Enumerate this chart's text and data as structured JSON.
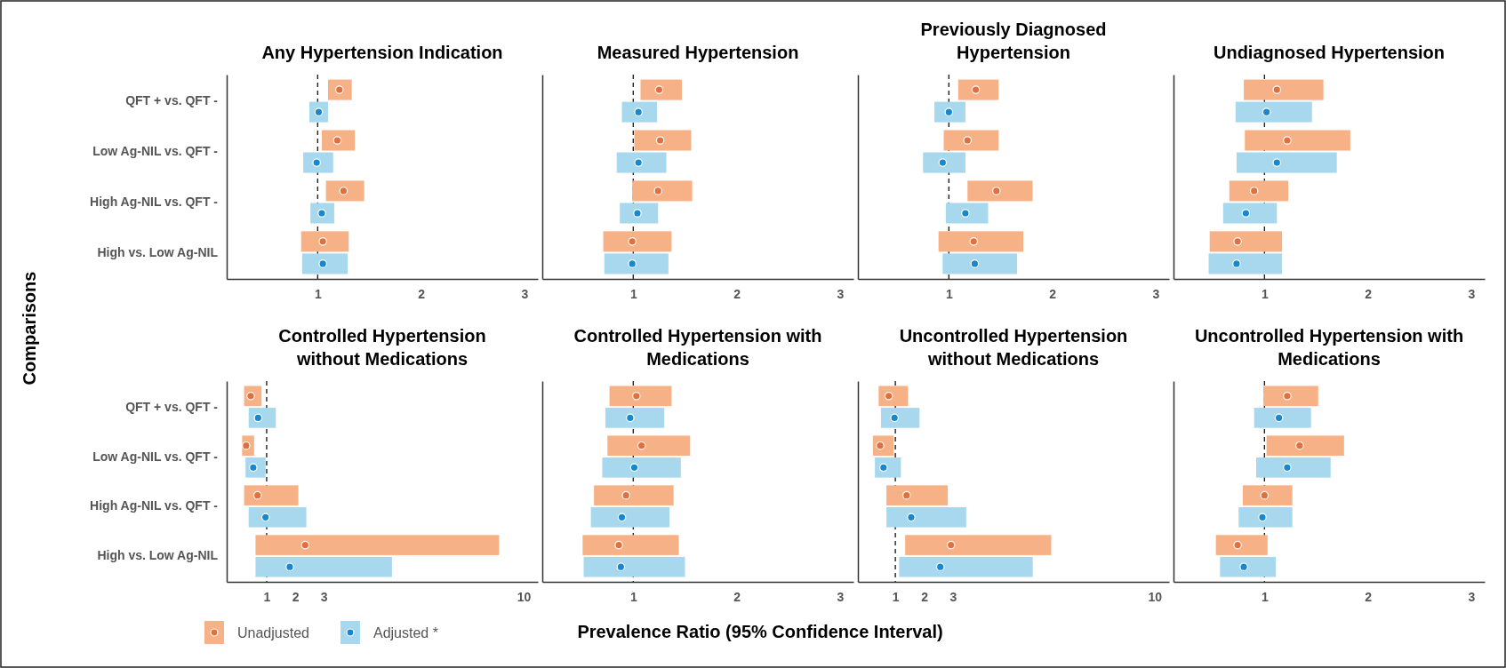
{
  "chart_data": [
    {
      "type": "bar",
      "title": "Any Hypertension Indication",
      "ylabel": "Comparisons",
      "orientation": "horizontal",
      "categories": [
        "QFT + vs. QFT -",
        "Low Ag-NIL vs. QFT -",
        "High Ag-NIL vs. QFT -",
        "High vs. Low Ag-NIL"
      ],
      "xlim": [
        0.12,
        3.13
      ],
      "xticks": [
        1,
        2,
        3
      ],
      "ref_lines": [
        {
          "axis": "x",
          "value": 1,
          "line_style": "dashed"
        }
      ],
      "marker": "circle",
      "series": [
        {
          "type": "bar",
          "color": "#f7b186",
          "base": [
            1.1,
            1.04,
            1.08,
            0.84
          ],
          "values": [
            0.23,
            0.32,
            0.37,
            0.46
          ]
        },
        {
          "type": "bar",
          "color": "#a8d8ee",
          "base": [
            0.92,
            0.86,
            0.93,
            0.85
          ],
          "values": [
            0.18,
            0.29,
            0.23,
            0.44
          ]
        },
        {
          "type": "scatter",
          "color": "#e2703f",
          "values": [
            1.21,
            1.19,
            1.25,
            1.05
          ]
        },
        {
          "type": "scatter",
          "color": "#1788cf",
          "values": [
            1.01,
            0.99,
            1.04,
            1.05
          ]
        }
      ]
    },
    {
      "type": "bar",
      "title": "Measured Hypertension",
      "orientation": "horizontal",
      "tick_labels": "x",
      "categories": [
        null,
        null,
        null,
        null
      ],
      "xlim": [
        0.12,
        3.13
      ],
      "xticks": [
        1,
        2,
        3
      ],
      "ref_lines": [
        {
          "axis": "x",
          "value": 1,
          "line_style": "dashed"
        }
      ],
      "marker": "circle",
      "series": [
        {
          "type": "bar",
          "color": "#f7b186",
          "base": [
            1.07,
            1.01,
            0.99,
            0.71
          ],
          "values": [
            0.4,
            0.55,
            0.58,
            0.66
          ]
        },
        {
          "type": "bar",
          "color": "#a8d8ee",
          "base": [
            0.89,
            0.84,
            0.87,
            0.72
          ],
          "values": [
            0.34,
            0.48,
            0.37,
            0.62
          ]
        },
        {
          "type": "scatter",
          "color": "#e2703f",
          "values": [
            1.25,
            1.26,
            1.24,
            0.99
          ]
        },
        {
          "type": "scatter",
          "color": "#1788cf",
          "values": [
            1.05,
            1.05,
            1.04,
            0.99
          ]
        }
      ]
    },
    {
      "type": "bar",
      "title": "Previously Diagnosed Hypertension",
      "orientation": "horizontal",
      "tick_labels": "x",
      "categories": [
        null,
        null,
        null,
        null
      ],
      "xlim": [
        0.12,
        3.13
      ],
      "xticks": [
        1,
        2,
        3
      ],
      "ref_lines": [
        {
          "axis": "x",
          "value": 1,
          "line_style": "dashed"
        }
      ],
      "marker": "circle",
      "series": [
        {
          "type": "bar",
          "color": "#f7b186",
          "base": [
            1.09,
            0.95,
            1.18,
            0.9
          ],
          "values": [
            0.39,
            0.53,
            0.63,
            0.82
          ]
        },
        {
          "type": "bar",
          "color": "#a8d8ee",
          "base": [
            0.86,
            0.75,
            0.97,
            0.94
          ],
          "values": [
            0.3,
            0.41,
            0.41,
            0.72
          ]
        },
        {
          "type": "scatter",
          "color": "#e2703f",
          "values": [
            1.26,
            1.18,
            1.46,
            1.24
          ]
        },
        {
          "type": "scatter",
          "color": "#1788cf",
          "values": [
            1.0,
            0.94,
            1.16,
            1.25
          ]
        }
      ]
    },
    {
      "type": "bar",
      "title": "Undiagnosed Hypertension",
      "orientation": "horizontal",
      "tick_labels": "x",
      "categories": [
        null,
        null,
        null,
        null
      ],
      "xlim": [
        0.12,
        3.13
      ],
      "xticks": [
        1,
        2,
        3
      ],
      "ref_lines": [
        {
          "axis": "x",
          "value": 1,
          "line_style": "dashed"
        }
      ],
      "marker": "circle",
      "series": [
        {
          "type": "bar",
          "color": "#f7b186",
          "base": [
            0.8,
            0.81,
            0.66,
            0.47
          ],
          "values": [
            0.77,
            1.02,
            0.57,
            0.7
          ]
        },
        {
          "type": "bar",
          "color": "#a8d8ee",
          "base": [
            0.72,
            0.73,
            0.6,
            0.46
          ],
          "values": [
            0.74,
            0.97,
            0.52,
            0.71
          ]
        },
        {
          "type": "scatter",
          "color": "#e2703f",
          "values": [
            1.12,
            1.22,
            0.9,
            0.74
          ]
        },
        {
          "type": "scatter",
          "color": "#1788cf",
          "values": [
            1.02,
            1.12,
            0.82,
            0.73
          ]
        }
      ]
    },
    {
      "type": "bar",
      "title": "Controlled Hypertension without Medications",
      "legend": "bottom",
      "orientation": "horizontal",
      "categories": [
        "QFT + vs. QFT -",
        "Low Ag-NIL vs. QFT -",
        "High Ag-NIL vs. QFT -",
        "High vs. Low Ag-NIL"
      ],
      "xlim": [
        -0.4,
        10.5
      ],
      "xticks": [
        1,
        2,
        3,
        10
      ],
      "ref_lines": [
        {
          "axis": "x",
          "value": 1,
          "line_style": "dashed"
        }
      ],
      "marker": "circle",
      "series": [
        {
          "type": "bar",
          "name": "Unadjusted",
          "color": "#f7b186",
          "base": [
            0.21,
            0.14,
            0.21,
            0.61
          ],
          "values": [
            0.61,
            0.42,
            1.9,
            8.53
          ]
        },
        {
          "type": "bar",
          "name": "Adjusted *",
          "color": "#a8d8ee",
          "base": [
            0.37,
            0.26,
            0.37,
            0.61
          ],
          "values": [
            0.95,
            0.7,
            2.02,
            4.78
          ]
        },
        {
          "type": "scatter",
          "color": "#e2703f",
          "values": [
            0.44,
            0.28,
            0.68,
            2.35
          ]
        },
        {
          "type": "scatter",
          "color": "#1788cf",
          "values": [
            0.7,
            0.53,
            0.96,
            1.81
          ]
        }
      ]
    },
    {
      "type": "bar",
      "title": "Controlled Hypertension with Medications",
      "xlabel": "Prevalence Ratio (95% Confidence Interval)",
      "orientation": "horizontal",
      "tick_labels": "x",
      "categories": [
        null,
        null,
        null,
        null
      ],
      "xlim": [
        0.12,
        3.13
      ],
      "xticks": [
        1,
        2,
        3
      ],
      "ref_lines": [
        {
          "axis": "x",
          "value": 1,
          "line_style": "dashed"
        }
      ],
      "marker": "circle",
      "series": [
        {
          "type": "bar",
          "color": "#f7b186",
          "base": [
            0.77,
            0.75,
            0.62,
            0.51
          ],
          "values": [
            0.6,
            0.8,
            0.77,
            0.93
          ]
        },
        {
          "type": "bar",
          "color": "#a8d8ee",
          "base": [
            0.73,
            0.7,
            0.59,
            0.52
          ],
          "values": [
            0.57,
            0.76,
            0.76,
            0.98
          ]
        },
        {
          "type": "scatter",
          "color": "#e2703f",
          "values": [
            1.03,
            1.08,
            0.93,
            0.86
          ]
        },
        {
          "type": "scatter",
          "color": "#1788cf",
          "values": [
            0.97,
            1.01,
            0.89,
            0.88
          ]
        }
      ]
    },
    {
      "type": "bar",
      "title": "Uncontrolled Hypertension without Medications",
      "orientation": "horizontal",
      "tick_labels": "x",
      "categories": [
        null,
        null,
        null,
        null
      ],
      "xlim": [
        -0.3,
        10.5
      ],
      "xticks": [
        1,
        2,
        3,
        10
      ],
      "ref_lines": [
        {
          "axis": "x",
          "value": 1,
          "line_style": "dashed"
        }
      ],
      "marker": "circle",
      "series": [
        {
          "type": "bar",
          "color": "#f7b186",
          "base": [
            0.42,
            0.22,
            0.69,
            1.34
          ],
          "values": [
            1.02,
            0.72,
            2.13,
            5.07
          ]
        },
        {
          "type": "bar",
          "color": "#a8d8ee",
          "base": [
            0.5,
            0.29,
            0.69,
            1.13
          ],
          "values": [
            1.34,
            0.9,
            2.77,
            4.64
          ]
        },
        {
          "type": "scatter",
          "color": "#e2703f",
          "values": [
            0.77,
            0.47,
            1.39,
            2.93
          ]
        },
        {
          "type": "scatter",
          "color": "#1788cf",
          "values": [
            0.97,
            0.59,
            1.55,
            2.56
          ]
        }
      ]
    },
    {
      "type": "bar",
      "title": "Uncontrolled Hypertension with Medications",
      "orientation": "horizontal",
      "tick_labels": "x",
      "categories": [
        null,
        null,
        null,
        null
      ],
      "xlim": [
        0.12,
        3.13
      ],
      "xticks": [
        1,
        2,
        3
      ],
      "ref_lines": [
        {
          "axis": "x",
          "value": 1,
          "line_style": "dashed"
        }
      ],
      "marker": "circle",
      "series": [
        {
          "type": "bar",
          "color": "#f7b186",
          "base": [
            0.99,
            1.02,
            0.79,
            0.53
          ],
          "values": [
            0.53,
            0.75,
            0.48,
            0.5
          ]
        },
        {
          "type": "bar",
          "color": "#a8d8ee",
          "base": [
            0.9,
            0.92,
            0.75,
            0.57
          ],
          "values": [
            0.55,
            0.72,
            0.52,
            0.54
          ]
        },
        {
          "type": "scatter",
          "color": "#e2703f",
          "values": [
            1.22,
            1.34,
            1.0,
            0.74
          ]
        },
        {
          "type": "scatter",
          "color": "#1788cf",
          "values": [
            1.14,
            1.22,
            0.98,
            0.8
          ]
        }
      ]
    }
  ]
}
